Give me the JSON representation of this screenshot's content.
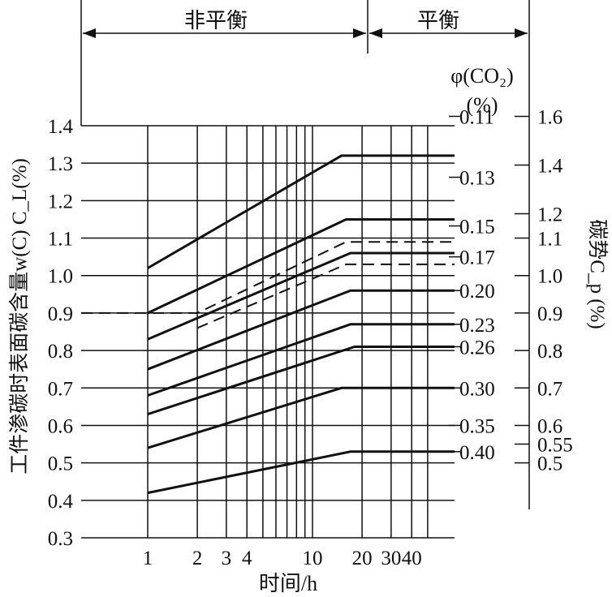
{
  "chart_data": {
    "type": "line",
    "regions": {
      "nonequilibrium": "非平衡",
      "equilibrium": "平衡"
    },
    "xlabel": "时间/h",
    "xscale": "log",
    "xlim": [
      1,
      50
    ],
    "x_ticks": [
      {
        "value": 1,
        "label": "1"
      },
      {
        "value": 2,
        "label": "2"
      },
      {
        "value": 3,
        "label": "3"
      },
      {
        "value": 4,
        "label": "4"
      },
      {
        "value": 10,
        "label": "10"
      },
      {
        "value": 20,
        "label": "20"
      },
      {
        "value": 30,
        "label": "30"
      },
      {
        "value": 40,
        "label": "40"
      }
    ],
    "ylabel": "工件渗碳时表面碳含量w(C) C_L(%)",
    "ylim": [
      0.3,
      1.4
    ],
    "y_ticks": [
      "1.4",
      "1.3",
      "1.2",
      "1.1",
      "1.0",
      "0.9",
      "0.8",
      "0.7",
      "0.6",
      "0.5",
      "0.4",
      "0.3"
    ],
    "co2_axis": {
      "title_line1": "φ(CO₂)",
      "title_line2": "(%)",
      "labels": [
        {
          "value": "0.11",
          "cp": 1.6
        },
        {
          "value": "0.13",
          "cp": 1.35
        },
        {
          "value": "0.15",
          "cp": 1.15
        },
        {
          "value": "0.17",
          "cp": 1.05
        },
        {
          "value": "0.20",
          "cp": 0.96
        },
        {
          "value": "0.23",
          "cp": 0.87
        },
        {
          "value": "0.26",
          "cp": 0.81
        },
        {
          "value": "0.30",
          "cp": 0.7
        },
        {
          "value": "0.35",
          "cp": 0.6
        },
        {
          "value": "0.40",
          "cp": 0.53
        }
      ]
    },
    "cp_axis": {
      "title": "碳势C_p (%)",
      "labels": [
        {
          "value": "1.6",
          "cp": 1.6
        },
        {
          "value": "1.4",
          "cp": 1.4
        },
        {
          "value": "1.2",
          "cp": 1.2
        },
        {
          "value": "1.1",
          "cp": 1.1
        },
        {
          "value": "1.0",
          "cp": 1.0
        },
        {
          "value": "0.9",
          "cp": 0.9
        },
        {
          "value": "0.8",
          "cp": 0.8
        },
        {
          "value": "0.7",
          "cp": 0.7
        },
        {
          "value": "0.6",
          "cp": 0.6
        },
        {
          "value": "0.55",
          "cp": 0.55
        },
        {
          "value": "0.5",
          "cp": 0.5
        }
      ]
    },
    "series": [
      {
        "style": "solid",
        "points": [
          [
            1,
            1.02
          ],
          [
            15,
            1.32
          ],
          [
            50,
            1.32
          ]
        ]
      },
      {
        "style": "solid",
        "points": [
          [
            1,
            0.9
          ],
          [
            16,
            1.15
          ],
          [
            50,
            1.15
          ]
        ]
      },
      {
        "style": "dashed",
        "points": [
          [
            0.3,
            0.9
          ],
          [
            2,
            0.9
          ],
          [
            16,
            1.09
          ],
          [
            50,
            1.09
          ]
        ]
      },
      {
        "style": "dashed",
        "points": [
          [
            2,
            0.86
          ],
          [
            16,
            1.03
          ],
          [
            50,
            1.03
          ]
        ]
      },
      {
        "style": "solid",
        "points": [
          [
            1,
            0.83
          ],
          [
            17,
            1.06
          ],
          [
            50,
            1.06
          ]
        ]
      },
      {
        "style": "solid",
        "points": [
          [
            1,
            0.75
          ],
          [
            17,
            0.96
          ],
          [
            50,
            0.96
          ]
        ]
      },
      {
        "style": "solid",
        "points": [
          [
            1,
            0.68
          ],
          [
            17,
            0.87
          ],
          [
            50,
            0.87
          ]
        ]
      },
      {
        "style": "solid",
        "points": [
          [
            1,
            0.63
          ],
          [
            18,
            0.81
          ],
          [
            50,
            0.81
          ]
        ]
      },
      {
        "style": "solid",
        "points": [
          [
            1,
            0.54
          ],
          [
            15,
            0.7
          ],
          [
            50,
            0.7
          ]
        ]
      },
      {
        "style": "solid",
        "points": [
          [
            1,
            0.42
          ],
          [
            17,
            0.53
          ],
          [
            50,
            0.53
          ]
        ]
      }
    ],
    "grid": true
  }
}
